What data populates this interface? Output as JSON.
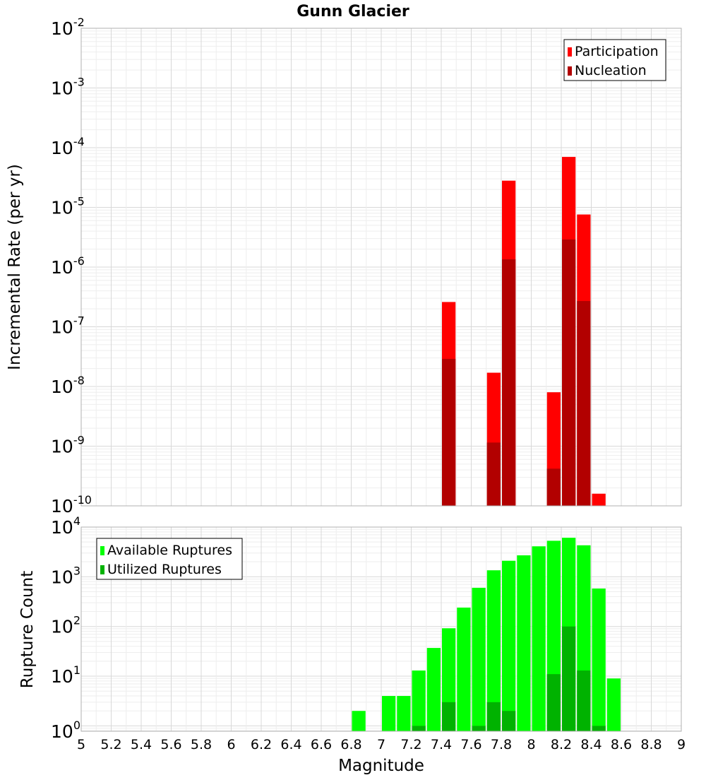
{
  "chart_data": [
    {
      "type": "bar",
      "title": "Gunn Glacier",
      "xlabel": "",
      "ylabel": "Incremental Rate (per yr)",
      "yscale": "log",
      "ylim": [
        1e-10,
        0.01
      ],
      "xlim": [
        5,
        9
      ],
      "bar_width": 0.1,
      "grid": true,
      "legend_position": "top-right",
      "y_ticks": [
        {
          "mantissa": "10",
          "exp": "-10"
        },
        {
          "mantissa": "10",
          "exp": "-9"
        },
        {
          "mantissa": "10",
          "exp": "-8"
        },
        {
          "mantissa": "10",
          "exp": "-7"
        },
        {
          "mantissa": "10",
          "exp": "-6"
        },
        {
          "mantissa": "10",
          "exp": "-5"
        },
        {
          "mantissa": "10",
          "exp": "-4"
        },
        {
          "mantissa": "10",
          "exp": "-3"
        },
        {
          "mantissa": "10",
          "exp": "-2"
        }
      ],
      "series": [
        {
          "name": "Participation",
          "color": "#ff0000",
          "x": [
            7.45,
            7.75,
            7.85,
            8.15,
            8.25,
            8.35,
            8.45
          ],
          "values": [
            2.6e-07,
            1.7e-08,
            2.8e-05,
            8e-09,
            7e-05,
            7.6e-06,
            1.6e-10
          ]
        },
        {
          "name": "Nucleation",
          "color": "#b20000",
          "x": [
            7.45,
            7.75,
            7.85,
            8.15,
            8.25,
            8.35
          ],
          "values": [
            2.9e-08,
            1.15e-09,
            1.35e-06,
            4.2e-10,
            2.9e-06,
            2.7e-07
          ]
        }
      ]
    },
    {
      "type": "bar",
      "title": "",
      "xlabel": "Magnitude",
      "ylabel": "Rupture Count",
      "yscale": "log",
      "ylim": [
        0.78,
        10000
      ],
      "xlim": [
        5,
        9
      ],
      "bar_width": 0.1,
      "grid": true,
      "legend_position": "top-left",
      "x_ticks": [
        "5",
        "5.2",
        "5.4",
        "5.6",
        "5.8",
        "6",
        "6.2",
        "6.4",
        "6.6",
        "6.8",
        "7",
        "7.2",
        "7.4",
        "7.6",
        "7.8",
        "8",
        "8.2",
        "8.4",
        "8.6",
        "8.8",
        "9"
      ],
      "y_ticks": [
        {
          "mantissa": "10",
          "exp": "0",
          "value": 1
        },
        {
          "mantissa": "10",
          "exp": "1",
          "value": 10
        },
        {
          "mantissa": "10",
          "exp": "2",
          "value": 100
        },
        {
          "mantissa": "10",
          "exp": "3",
          "value": 1000
        },
        {
          "mantissa": "10",
          "exp": "4",
          "value": 10000
        }
      ],
      "series": [
        {
          "name": "Available Ruptures",
          "color": "#00ff00",
          "x": [
            6.85,
            7.05,
            7.15,
            7.25,
            7.35,
            7.45,
            7.55,
            7.65,
            7.75,
            7.85,
            7.95,
            8.05,
            8.15,
            8.25,
            8.35,
            8.45,
            8.55
          ],
          "values": [
            2,
            4,
            4,
            13,
            37,
            92,
            240,
            600,
            1350,
            2100,
            2700,
            4100,
            5300,
            6100,
            4300,
            580,
            9
          ]
        },
        {
          "name": "Utilized Ruptures",
          "color": "#00b200",
          "x": [
            7.25,
            7.45,
            7.65,
            7.75,
            7.85,
            8.15,
            8.25,
            8.35,
            8.45
          ],
          "values": [
            1,
            3,
            1,
            3,
            2,
            11,
            100,
            13,
            1
          ]
        }
      ]
    }
  ]
}
